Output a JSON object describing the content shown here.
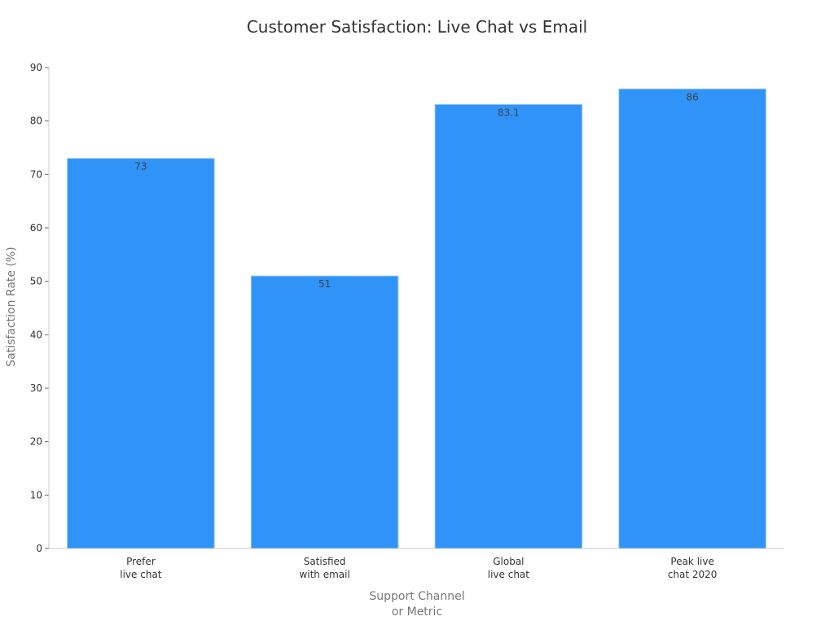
{
  "chart_data": {
    "type": "bar",
    "title": "Customer Satisfaction: Live Chat vs Email",
    "xlabel": [
      "Support Channel",
      "or Metric"
    ],
    "ylabel": "Satisfaction Rate (%)",
    "categories": [
      [
        "Prefer",
        "live chat"
      ],
      [
        "Satisfied",
        "with email"
      ],
      [
        "Global",
        "live chat"
      ],
      [
        "Peak live",
        "chat 2020"
      ]
    ],
    "values": [
      73,
      51,
      83.1,
      86
    ],
    "data_labels": [
      "73",
      "51",
      "83.1",
      "86"
    ],
    "ylim": [
      0,
      90
    ],
    "yticks": [
      0,
      10,
      20,
      30,
      40,
      50,
      60,
      70,
      80,
      90
    ],
    "grid": false,
    "legend": "none",
    "colors": {
      "bar": "#2F93F8",
      "bar_edge": "#9FCBF7",
      "axis": "#cccccc",
      "tick_text": "#333333",
      "axis_title": "#777777",
      "title": "#333333"
    }
  }
}
